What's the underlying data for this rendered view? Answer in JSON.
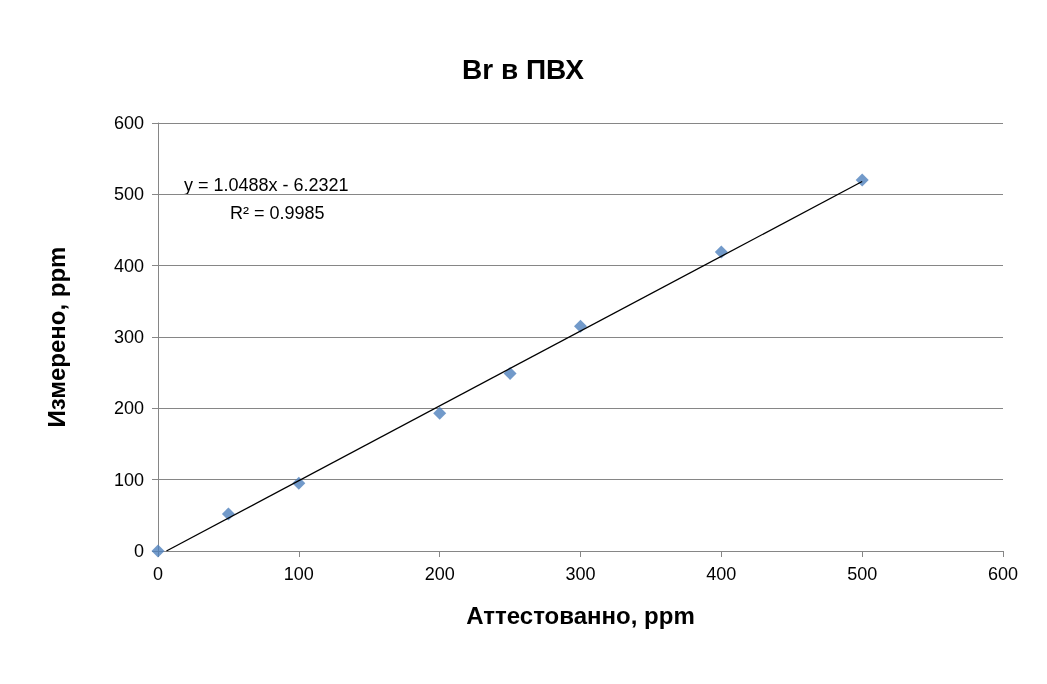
{
  "chart_data": {
    "type": "scatter",
    "title": "Br в ПВХ",
    "xlabel": "Аттестованно, ppm",
    "ylabel": "Измерено, ppm",
    "series": [
      {
        "type": "scatter",
        "color": "#4f81bd",
        "x": [
          0,
          50,
          100,
          200,
          250,
          300,
          400,
          500
        ],
        "values": [
          0,
          52,
          95,
          193,
          249,
          315,
          419,
          520
        ],
        "marker": "diamond"
      },
      {
        "type": "line",
        "color": "#000000",
        "x": [
          6,
          500
        ],
        "values": [
          0,
          518
        ],
        "marker": "none"
      }
    ],
    "annotations": [
      "y = 1.0488x - 6.2321",
      "R² = 0.9985"
    ],
    "xlim": [
      0,
      600
    ],
    "xticks": [
      0,
      100,
      200,
      300,
      400,
      500,
      600
    ],
    "ylim": [
      0,
      600
    ],
    "yticks": [
      0,
      100,
      200,
      300,
      400,
      500,
      600
    ],
    "grid": "y"
  }
}
